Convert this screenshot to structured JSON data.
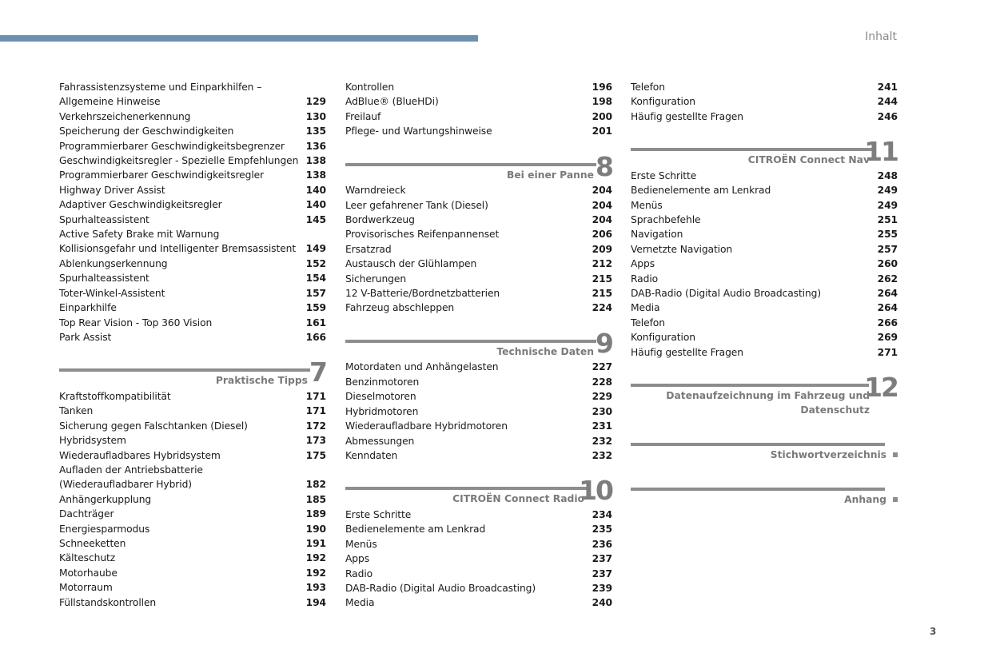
{
  "header": {
    "title": "Inhalt",
    "page_number": "3",
    "accent_color": "#6c90ae"
  },
  "columns": [
    [
      {
        "type": "list",
        "items": [
          {
            "title": "Fahrassistenzsysteme und Einparkhilfen – Allgemeine Hinweise",
            "page": "129"
          },
          {
            "title": "Verkehrszeichenerkennung",
            "page": "130"
          },
          {
            "title": "Speicherung der Geschwindigkeiten",
            "page": "135"
          },
          {
            "title": "Programmierbarer Geschwindigkeitsbegrenzer",
            "page": "136"
          },
          {
            "title": "Geschwindigkeitsregler - Spezielle Empfehlungen",
            "page": "138"
          },
          {
            "title": "Programmierbarer Geschwindigkeitsregler",
            "page": "138"
          },
          {
            "title": "Highway Driver Assist",
            "page": "140"
          },
          {
            "title": "Adaptiver Geschwindigkeitsregler",
            "page": "140"
          },
          {
            "title": "Spurhalteassistent",
            "page": "145"
          },
          {
            "title": "Active Safety Brake mit Warnung",
            "page": ""
          },
          {
            "title": "Kollisionsgefahr und Intelligenter Bremsassistent",
            "page": "149"
          },
          {
            "title": "Ablenkungserkennung",
            "page": "152"
          },
          {
            "title": "Spurhalteassistent",
            "page": "154"
          },
          {
            "title": "Toter-Winkel-Assistent",
            "page": "157"
          },
          {
            "title": "Einparkhilfe",
            "page": "159"
          },
          {
            "title": "Top Rear Vision - Top 360 Vision",
            "page": "161"
          },
          {
            "title": "Park Assist",
            "page": "166"
          }
        ]
      },
      {
        "type": "section",
        "number": "7",
        "title": "Praktische Tipps"
      },
      {
        "type": "list",
        "items": [
          {
            "title": "Kraftstoffkompatibilität",
            "page": "171"
          },
          {
            "title": "Tanken",
            "page": "171"
          },
          {
            "title": "Sicherung gegen Falschtanken (Diesel)",
            "page": "172"
          },
          {
            "title": "Hybridsystem",
            "page": "173"
          },
          {
            "title": "Wiederaufladbares Hybridsystem",
            "page": "175"
          },
          {
            "title": "Aufladen der Antriebsbatterie (Wiederaufladbarer Hybrid)",
            "page": "182"
          },
          {
            "title": "Anhängerkupplung",
            "page": "185"
          },
          {
            "title": "Dachträger",
            "page": "189"
          },
          {
            "title": "Energiesparmodus",
            "page": "190"
          },
          {
            "title": "Schneeketten",
            "page": "191"
          },
          {
            "title": "Kälteschutz",
            "page": "192"
          },
          {
            "title": "Motorhaube",
            "page": "192"
          },
          {
            "title": "Motorraum",
            "page": "193"
          },
          {
            "title": "Füllstandskontrollen",
            "page": "194"
          }
        ]
      }
    ],
    [
      {
        "type": "list",
        "items": [
          {
            "title": "Kontrollen",
            "page": "196"
          },
          {
            "title": "AdBlue® (BlueHDi)",
            "page": "198"
          },
          {
            "title": "Freilauf",
            "page": "200"
          },
          {
            "title": "Pflege- und Wartungshinweise",
            "page": "201"
          }
        ]
      },
      {
        "type": "section",
        "number": "8",
        "title": "Bei einer Panne"
      },
      {
        "type": "list",
        "items": [
          {
            "title": "Warndreieck",
            "page": "204"
          },
          {
            "title": "Leer gefahrener Tank (Diesel)",
            "page": "204"
          },
          {
            "title": "Bordwerkzeug",
            "page": "204"
          },
          {
            "title": "Provisorisches Reifenpannenset",
            "page": "206"
          },
          {
            "title": "Ersatzrad",
            "page": "209"
          },
          {
            "title": "Austausch der Glühlampen",
            "page": "212"
          },
          {
            "title": "Sicherungen",
            "page": "215"
          },
          {
            "title": "12 V-Batterie/Bordnetzbatterien",
            "page": "215"
          },
          {
            "title": "Fahrzeug abschleppen",
            "page": "224"
          }
        ]
      },
      {
        "type": "section",
        "number": "9",
        "title": "Technische Daten"
      },
      {
        "type": "list",
        "items": [
          {
            "title": "Motordaten und Anhängelasten",
            "page": "227"
          },
          {
            "title": "Benzinmotoren",
            "page": "228"
          },
          {
            "title": "Dieselmotoren",
            "page": "229"
          },
          {
            "title": "Hybridmotoren",
            "page": "230"
          },
          {
            "title": "Wiederaufladbare Hybridmotoren",
            "page": "231"
          },
          {
            "title": "Abmessungen",
            "page": "232"
          },
          {
            "title": "Kenndaten",
            "page": "232"
          }
        ]
      },
      {
        "type": "section",
        "number": "10",
        "title": "CITROËN Connect Radio"
      },
      {
        "type": "list",
        "items": [
          {
            "title": "Erste Schritte",
            "page": "234"
          },
          {
            "title": "Bedienelemente am Lenkrad",
            "page": "235"
          },
          {
            "title": "Menüs",
            "page": "236"
          },
          {
            "title": "Apps",
            "page": "237"
          },
          {
            "title": "Radio",
            "page": "237"
          },
          {
            "title": "DAB-Radio (Digital Audio Broadcasting)",
            "page": "239"
          },
          {
            "title": "Media",
            "page": "240"
          }
        ]
      }
    ],
    [
      {
        "type": "list",
        "items": [
          {
            "title": "Telefon",
            "page": "241"
          },
          {
            "title": "Konfiguration",
            "page": "244"
          },
          {
            "title": "Häufig gestellte Fragen",
            "page": "246"
          }
        ]
      },
      {
        "type": "section",
        "number": "11",
        "title": "CITROËN Connect Nav"
      },
      {
        "type": "list",
        "items": [
          {
            "title": "Erste Schritte",
            "page": "248"
          },
          {
            "title": "Bedienelemente am Lenkrad",
            "page": "249"
          },
          {
            "title": "Menüs",
            "page": "249"
          },
          {
            "title": "Sprachbefehle",
            "page": "251"
          },
          {
            "title": "Navigation",
            "page": "255"
          },
          {
            "title": "Vernetzte Navigation",
            "page": "257"
          },
          {
            "title": "Apps",
            "page": "260"
          },
          {
            "title": "Radio",
            "page": "262"
          },
          {
            "title": "DAB-Radio (Digital Audio Broadcasting)",
            "page": "264"
          },
          {
            "title": "Media",
            "page": "264"
          },
          {
            "title": "Telefon",
            "page": "266"
          },
          {
            "title": "Konfiguration",
            "page": "269"
          },
          {
            "title": "Häufig gestellte Fragen",
            "page": "271"
          }
        ]
      },
      {
        "type": "section",
        "number": "12",
        "title": "Datenaufzeichnung im Fahrzeug und Datenschutz",
        "wide": true
      },
      {
        "type": "section",
        "number": "",
        "title": "Stichwortverzeichnis",
        "marker": "square"
      },
      {
        "type": "section",
        "number": "",
        "title": "Anhang",
        "marker": "square"
      }
    ]
  ]
}
